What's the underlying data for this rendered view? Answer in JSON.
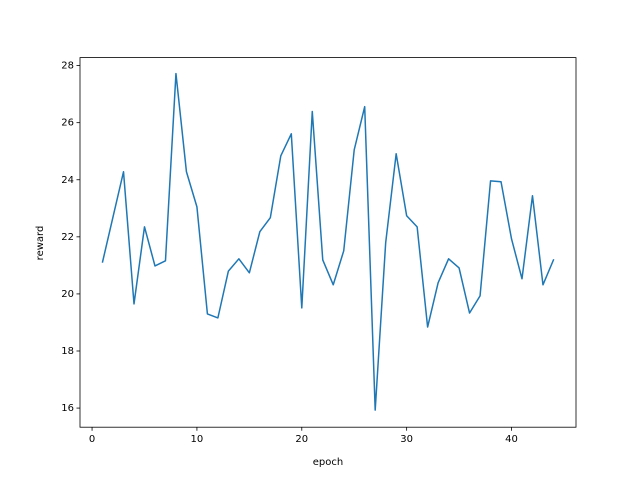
{
  "chart_data": {
    "type": "line",
    "x_label": "epoch",
    "y_label": "reward",
    "x": [
      1,
      2,
      3,
      4,
      5,
      6,
      7,
      8,
      9,
      10,
      11,
      12,
      13,
      14,
      15,
      16,
      17,
      18,
      19,
      20,
      21,
      22,
      23,
      24,
      25,
      26,
      27,
      28,
      29,
      30,
      31,
      32,
      33,
      34,
      35,
      36,
      37,
      38,
      39,
      40,
      41,
      42,
      43,
      44
    ],
    "series": [
      {
        "color": "#1f77b4",
        "values": [
          21.12,
          22.7,
          24.28,
          19.65,
          22.35,
          20.98,
          21.16,
          27.72,
          24.28,
          23.05,
          19.3,
          19.16,
          20.8,
          21.23,
          20.74,
          22.18,
          22.67,
          24.84,
          25.61,
          19.51,
          26.39,
          21.19,
          20.32,
          21.51,
          25.05,
          26.56,
          15.93,
          21.79,
          24.91,
          22.74,
          22.35,
          18.84,
          20.39,
          21.23,
          20.91,
          19.33,
          19.93,
          23.96,
          23.93,
          21.93,
          20.53,
          23.44,
          20.32,
          21.19
        ]
      }
    ],
    "xlim": [
      -1.15,
      46.15
    ],
    "ylim": [
      15.33,
      28.28
    ],
    "xticks": [
      0,
      10,
      20,
      30,
      40
    ],
    "yticks": [
      16,
      18,
      20,
      22,
      24,
      26,
      28
    ]
  }
}
